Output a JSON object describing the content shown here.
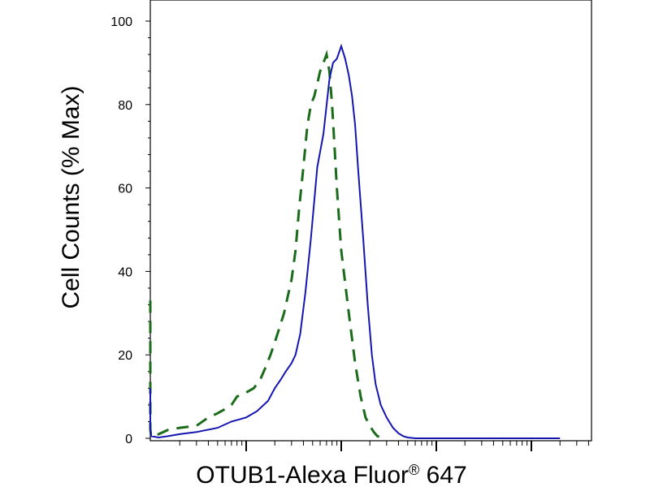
{
  "chart_data": {
    "type": "line",
    "title": "",
    "xlabel_main": "OTUB1-Alexa Fluor",
    "xlabel_mark": "®",
    "xlabel_tail": " 647",
    "ylabel": "Cell Counts (% Max)",
    "x_scale": "log",
    "ylim": [
      0,
      100
    ],
    "y_ticks": [
      "0",
      "20",
      "40",
      "60",
      "80",
      "100"
    ],
    "x_major_ticks": [
      100,
      1000,
      10000,
      100000
    ],
    "series": [
      {
        "style": "solid",
        "color": "#1515b0",
        "x": [
          7,
          8,
          10,
          12,
          15,
          20,
          30,
          50,
          70,
          100,
          130,
          170,
          200,
          230,
          260,
          300,
          330,
          370,
          420,
          480,
          560,
          650,
          750,
          820,
          900,
          1000,
          1100,
          1200,
          1300,
          1400,
          1500,
          1700,
          1900,
          2100,
          2300,
          2600,
          3000,
          3500,
          4000,
          4500,
          5000,
          5500,
          6000,
          7000,
          8000,
          9000,
          10000,
          12000,
          20000,
          100000,
          200000
        ],
        "y": [
          12,
          3,
          0.5,
          0.2,
          0.5,
          1,
          1.5,
          2.5,
          4,
          5,
          6.5,
          9,
          12,
          14,
          16,
          18,
          20,
          25,
          35,
          48,
          65,
          73,
          86,
          90,
          91,
          94,
          91,
          87,
          82,
          75,
          65,
          48,
          32,
          20,
          13,
          8,
          5,
          2.5,
          1.2,
          0.5,
          0.2,
          0.1,
          0,
          0,
          0,
          0,
          0,
          0,
          0,
          0,
          0
        ]
      },
      {
        "style": "dashed",
        "color": "#1a6b1a",
        "x": [
          7,
          8,
          9,
          10,
          12,
          15,
          20,
          30,
          40,
          50,
          60,
          70,
          80,
          100,
          120,
          140,
          160,
          180,
          200,
          220,
          250,
          280,
          300,
          330,
          360,
          400,
          440,
          480,
          520,
          560,
          600,
          650,
          700,
          750,
          800,
          850,
          900,
          1000,
          1200,
          1400,
          1600,
          1800,
          2000,
          2200,
          2400,
          2700,
          3000
        ],
        "y": [
          33,
          12,
          2,
          0.5,
          1,
          2,
          2.5,
          3,
          5,
          6,
          7,
          8,
          10,
          11,
          12,
          14,
          17,
          20,
          23,
          26,
          30,
          35,
          38,
          45,
          55,
          65,
          75,
          80,
          82,
          85,
          88,
          90,
          92,
          88,
          80,
          70,
          60,
          45,
          30,
          18,
          10,
          5,
          3,
          1.5,
          0.5,
          0.2,
          0
        ]
      }
    ]
  }
}
